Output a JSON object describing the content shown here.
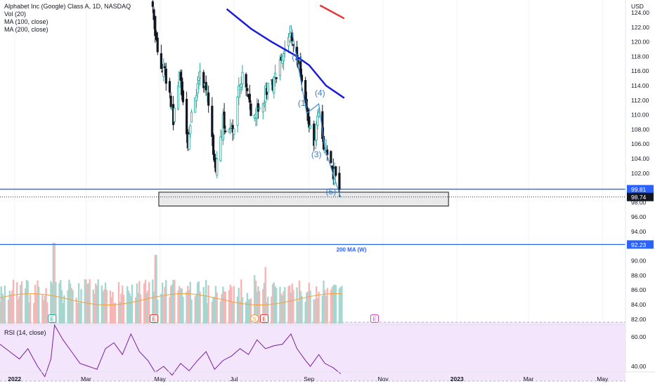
{
  "legend": {
    "title": "Alphabet Inc (Google) Class A, 1D, NASDAQ",
    "vol": "Vol (20)",
    "ma100": "MA (100, close)",
    "ma200": "MA (200, close)"
  },
  "rsi_legend": "RSI (14, close)",
  "colors": {
    "up": "#26a69a",
    "down": "#131722",
    "ma100": "#1a1adb",
    "ma200": "#e53935",
    "hline": "#2962ff",
    "rsi_line": "#7b1fa2",
    "rsi_band": "#f3e5fc",
    "vol_up": "#a5d6d0",
    "vol_down": "#f7b6b6",
    "vol_ma": "#f0a040"
  },
  "chart_data": {
    "type": "candlestick",
    "price_axis": {
      "currency": "USD",
      "min": 80,
      "max": 125,
      "ticks": [
        "124.00",
        "122.00",
        "120.00",
        "118.00",
        "116.00",
        "114.00",
        "112.00",
        "110.00",
        "108.00",
        "106.00",
        "104.00",
        "102.00",
        "98.00",
        "96.00",
        "94.00",
        "90.00",
        "88.00",
        "86.00",
        "84.00",
        "82.00"
      ]
    },
    "time_axis": {
      "start": "2021-12-20",
      "end": "2023-05-20",
      "labels": [
        {
          "date": "2022-01-01",
          "text": "2022",
          "bold": true
        },
        {
          "date": "2022-03-01",
          "text": "Mar",
          "bold": false
        },
        {
          "date": "2022-05-01",
          "text": "May",
          "bold": false
        },
        {
          "date": "2022-07-01",
          "text": "Jul",
          "bold": false
        },
        {
          "date": "2022-09-01",
          "text": "Sep",
          "bold": false
        },
        {
          "date": "2022-11-01",
          "text": "Nov",
          "bold": false
        },
        {
          "date": "2023-01-01",
          "text": "2023",
          "bold": true
        },
        {
          "date": "2023-03-01",
          "text": "Mar",
          "bold": false
        },
        {
          "date": "2023-05-01",
          "text": "May",
          "bold": false
        }
      ]
    },
    "price_path": [
      [
        "2022-04-25",
        124
      ],
      [
        "2022-04-29",
        119
      ],
      [
        "2022-05-09",
        113
      ],
      [
        "2022-05-12",
        109
      ],
      [
        "2022-05-17",
        116
      ],
      [
        "2022-05-24",
        105
      ],
      [
        "2022-05-27",
        110
      ],
      [
        "2022-06-03",
        115
      ],
      [
        "2022-06-10",
        112
      ],
      [
        "2022-06-16",
        102
      ],
      [
        "2022-06-22",
        109
      ],
      [
        "2022-06-30",
        108
      ],
      [
        "2022-07-08",
        116
      ],
      [
        "2022-07-15",
        110
      ],
      [
        "2022-07-22",
        110
      ],
      [
        "2022-07-27",
        113
      ],
      [
        "2022-08-02",
        114
      ],
      [
        "2022-08-09",
        117
      ],
      [
        "2022-08-17",
        122
      ],
      [
        "2022-08-22",
        118
      ],
      [
        "2022-08-26",
        114
      ],
      [
        "2022-08-31",
        109
      ],
      [
        "2022-09-06",
        106
      ],
      [
        "2022-09-09",
        111
      ],
      [
        "2022-09-14",
        105
      ],
      [
        "2022-09-20",
        103
      ],
      [
        "2022-09-26",
        98.7
      ]
    ],
    "ma100": {
      "name": "MA (100, close)",
      "points": [
        [
          "2022-06-25",
          124.5
        ],
        [
          "2022-07-15",
          121.8
        ],
        [
          "2022-08-01",
          120.0
        ],
        [
          "2022-08-20",
          118.2
        ],
        [
          "2022-09-01",
          116.8
        ],
        [
          "2022-09-15",
          114.0
        ],
        [
          "2022-09-30",
          112.3
        ]
      ]
    },
    "ma200": {
      "name": "MA (200, close)",
      "points": [
        [
          "2022-09-10",
          125.0
        ],
        [
          "2022-09-30",
          123.2
        ]
      ]
    },
    "elliott_wave": {
      "points": [
        [
          "2022-08-17",
          122.3
        ],
        [
          "2022-08-30",
          110.2
        ],
        [
          "2022-09-09",
          111.5
        ],
        [
          "2022-09-14",
          105.4
        ],
        [
          "2022-09-27",
          98.7
        ]
      ],
      "labels": [
        {
          "text": "(2)",
          "date": "2022-08-22",
          "price": 117.5
        },
        {
          "text": "(1)",
          "date": "2022-08-27",
          "price": 111.2
        },
        {
          "text": "(4)",
          "date": "2022-09-10",
          "price": 112.6
        },
        {
          "text": "(3)",
          "date": "2022-09-07",
          "price": 104.2
        },
        {
          "text": "(5)",
          "date": "2022-09-19",
          "price": 99.1
        }
      ]
    },
    "support_box": {
      "start": "2022-04-30",
      "end": "2022-12-25",
      "top": 99.4,
      "bottom": 97.5
    },
    "hlines": [
      {
        "price": 99.81,
        "label": "99.81"
      },
      {
        "price": 92.23,
        "label": "92.23",
        "note": "200 MA (W)"
      }
    ],
    "last_price": {
      "price": 98.74,
      "label": "98.74"
    },
    "events": [
      {
        "date": "2022-02-01",
        "text": "E",
        "color": "#26a69a"
      },
      {
        "date": "2022-04-26",
        "text": "E",
        "color": "#e53935"
      },
      {
        "date": "2022-07-18",
        "text": "S",
        "color": "#f0a040"
      },
      {
        "date": "2022-07-26",
        "text": "E",
        "color": "#e53935"
      },
      {
        "date": "2022-10-25",
        "text": "E",
        "color": "#d63fd6"
      }
    ],
    "volume": {
      "start": "2021-12-20",
      "end": "2022-09-28",
      "note": "relative daily volume heights, 0-1"
    },
    "rsi": {
      "name": "RSI (14, close)",
      "band": [
        30,
        70
      ],
      "ticks": [
        "60.00",
        "40.00"
      ],
      "points": [
        [
          "2021-12-20",
          55
        ],
        [
          "2021-12-28",
          50
        ],
        [
          "2022-01-05",
          45
        ],
        [
          "2022-01-12",
          52
        ],
        [
          "2022-01-20",
          40
        ],
        [
          "2022-01-26",
          33
        ],
        [
          "2022-01-31",
          45
        ],
        [
          "2022-02-03",
          68
        ],
        [
          "2022-02-10",
          58
        ],
        [
          "2022-02-17",
          50
        ],
        [
          "2022-02-24",
          42
        ],
        [
          "2022-03-03",
          40
        ],
        [
          "2022-03-10",
          38
        ],
        [
          "2022-03-17",
          52
        ],
        [
          "2022-03-24",
          56
        ],
        [
          "2022-03-31",
          48
        ],
        [
          "2022-04-07",
          62
        ],
        [
          "2022-04-14",
          50
        ],
        [
          "2022-04-21",
          44
        ],
        [
          "2022-04-27",
          36
        ],
        [
          "2022-05-04",
          40
        ],
        [
          "2022-05-11",
          34
        ],
        [
          "2022-05-18",
          42
        ],
        [
          "2022-05-25",
          37
        ],
        [
          "2022-06-01",
          44
        ],
        [
          "2022-06-08",
          50
        ],
        [
          "2022-06-15",
          38
        ],
        [
          "2022-06-22",
          44
        ],
        [
          "2022-06-29",
          47
        ],
        [
          "2022-07-06",
          52
        ],
        [
          "2022-07-13",
          48
        ],
        [
          "2022-07-20",
          58
        ],
        [
          "2022-07-27",
          52
        ],
        [
          "2022-08-03",
          54
        ],
        [
          "2022-08-10",
          55
        ],
        [
          "2022-08-17",
          62
        ],
        [
          "2022-08-22",
          52
        ],
        [
          "2022-08-29",
          44
        ],
        [
          "2022-09-02",
          40
        ],
        [
          "2022-09-09",
          48
        ],
        [
          "2022-09-14",
          42
        ],
        [
          "2022-09-21",
          39
        ],
        [
          "2022-09-27",
          35
        ]
      ]
    }
  }
}
